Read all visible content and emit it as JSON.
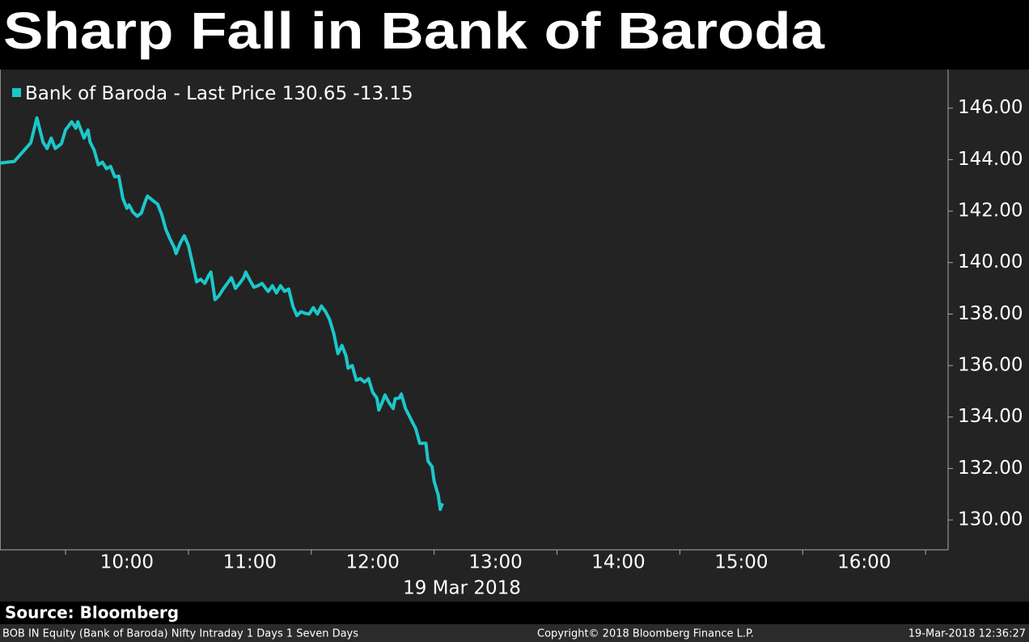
{
  "chart_data": {
    "type": "line",
    "title": "Sharp Fall in Bank of Baroda",
    "x_label": "19 Mar 2018",
    "source": "Source: Bloomberg",
    "footer_left": "BOB IN Equity (Bank of Baroda) Nifty Intraday 1 Days 1 Seven Days",
    "footer_center": "Copyright© 2018 Bloomberg Finance L.P.",
    "footer_right": "19-Mar-2018 12:36:27",
    "last_price": 130.65,
    "change": -13.15,
    "x": [
      "08:58",
      "09:05",
      "09:13",
      "09:16",
      "09:19",
      "09:21",
      "09:23",
      "09:25",
      "09:28",
      "09:30",
      "09:33",
      "09:35",
      "09:36",
      "09:39",
      "09:41",
      "09:42",
      "09:44",
      "09:46",
      "09:48",
      "09:50",
      "09:52",
      "09:54",
      "09:56",
      "09:58",
      "10:00",
      "10:01",
      "10:03",
      "10:05",
      "10:07",
      "10:09",
      "10:10",
      "10:13",
      "10:15",
      "10:17",
      "10:19",
      "10:21",
      "10:23",
      "10:24",
      "10:26",
      "10:28",
      "10:30",
      "10:32",
      "10:34",
      "10:36",
      "10:38",
      "10:40",
      "10:41",
      "10:43",
      "10:45",
      "10:47",
      "10:49",
      "10:51",
      "10:53",
      "10:55",
      "10:57",
      "10:58",
      "11:00",
      "11:02",
      "11:04",
      "11:06",
      "11:08",
      "11:09",
      "11:11",
      "11:13",
      "11:15",
      "11:17",
      "11:19",
      "11:21",
      "11:23",
      "11:25",
      "11:27",
      "11:29",
      "11:31",
      "11:33",
      "11:35",
      "11:37",
      "11:39",
      "11:41",
      "11:43",
      "11:45",
      "11:47",
      "11:48",
      "11:50",
      "11:52",
      "11:54",
      "11:56",
      "11:58",
      "12:00",
      "12:02",
      "12:03",
      "12:05",
      "12:06",
      "12:08",
      "12:10",
      "12:11",
      "12:13",
      "12:14",
      "12:16",
      "12:18",
      "12:19",
      "12:21",
      "12:23",
      "12:25",
      "12:26",
      "12:27",
      "12:29",
      "12:30",
      "12:32",
      "12:33",
      "12:34"
    ],
    "series": [
      {
        "name": "Bank of Baroda - Last Price",
        "color": "#1cc7c9",
        "values": [
          143.87,
          143.93,
          144.65,
          145.62,
          144.68,
          144.43,
          144.84,
          144.43,
          144.62,
          145.15,
          145.47,
          145.22,
          145.47,
          144.84,
          145.15,
          144.68,
          144.37,
          143.8,
          143.9,
          143.65,
          143.74,
          143.33,
          143.36,
          142.49,
          142.11,
          142.24,
          141.95,
          141.8,
          141.92,
          142.39,
          142.58,
          142.39,
          142.27,
          141.86,
          141.29,
          140.92,
          140.6,
          140.35,
          140.76,
          141.04,
          140.67,
          139.98,
          139.25,
          139.35,
          139.19,
          139.51,
          139.63,
          138.56,
          138.72,
          138.97,
          139.19,
          139.41,
          139.0,
          139.19,
          139.41,
          139.63,
          139.32,
          139.04,
          139.1,
          139.19,
          138.97,
          138.88,
          139.1,
          138.82,
          139.1,
          138.88,
          138.97,
          138.31,
          137.94,
          138.09,
          138.03,
          138.0,
          138.25,
          138.0,
          138.31,
          138.09,
          137.78,
          137.25,
          136.46,
          136.78,
          136.37,
          135.9,
          136.0,
          135.43,
          135.49,
          135.36,
          135.49,
          134.96,
          134.74,
          134.27,
          134.64,
          134.86,
          134.55,
          134.33,
          134.71,
          134.74,
          134.89,
          134.33,
          134.02,
          133.86,
          133.55,
          132.98,
          132.98,
          132.98,
          132.29,
          132.07,
          131.51,
          130.97,
          130.41,
          130.65
        ]
      }
    ],
    "xlim": [
      "08:58",
      "16:41"
    ],
    "xticks": [
      "10:00",
      "11:00",
      "12:00",
      "13:00",
      "14:00",
      "15:00",
      "16:00"
    ],
    "xminorticks": [
      "09:30",
      "10:30",
      "11:30",
      "12:30",
      "13:30",
      "14:30",
      "15:30",
      "16:30"
    ],
    "ylim": [
      128.84,
      147.5
    ],
    "yticks": [
      {
        "value": 130,
        "label": "130.00"
      },
      {
        "value": 132,
        "label": "132.00"
      },
      {
        "value": 134,
        "label": "134.00"
      },
      {
        "value": 136,
        "label": "136.00"
      },
      {
        "value": 138,
        "label": "138.00"
      },
      {
        "value": 140,
        "label": "140.00"
      },
      {
        "value": 142,
        "label": "142.00"
      },
      {
        "value": 144,
        "label": "144.00"
      },
      {
        "value": 146,
        "label": "146.00"
      }
    ],
    "background": "#232323"
  }
}
